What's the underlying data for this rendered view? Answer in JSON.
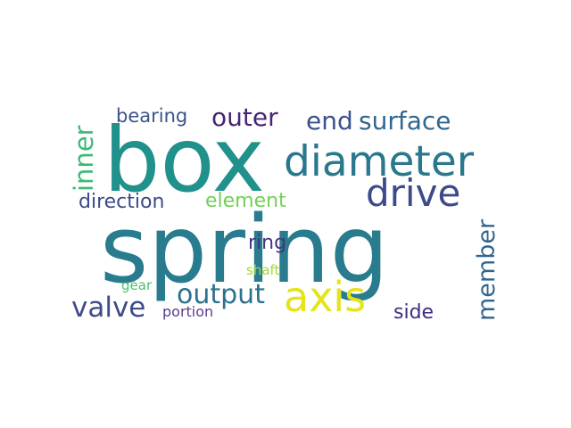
{
  "words": [
    {
      "text": "spring",
      "color": "#297b8e"
    },
    {
      "text": "box",
      "color": "#21918c"
    },
    {
      "text": "diameter",
      "color": "#2a788e"
    },
    {
      "text": "drive",
      "color": "#3e4989"
    },
    {
      "text": "axis",
      "color": "#e5e419"
    },
    {
      "text": "surface",
      "color": "#31668e"
    },
    {
      "text": "end",
      "color": "#3b518b"
    },
    {
      "text": "outer",
      "color": "#482475"
    },
    {
      "text": "bearing",
      "color": "#3b528b"
    },
    {
      "text": "inner",
      "color": "#3aba76"
    },
    {
      "text": "direction",
      "color": "#3e4a89"
    },
    {
      "text": "element",
      "color": "#73d056"
    },
    {
      "text": "output",
      "color": "#2c728e"
    },
    {
      "text": "valve",
      "color": "#3e4c8a"
    },
    {
      "text": "member",
      "color": "#32658e"
    },
    {
      "text": "ring",
      "color": "#463480"
    },
    {
      "text": "side",
      "color": "#3f2d80"
    },
    {
      "text": "shaft",
      "color": "#a2da37"
    },
    {
      "text": "gear",
      "color": "#4ac16d"
    },
    {
      "text": "portion",
      "color": "#5c3c8d"
    }
  ]
}
